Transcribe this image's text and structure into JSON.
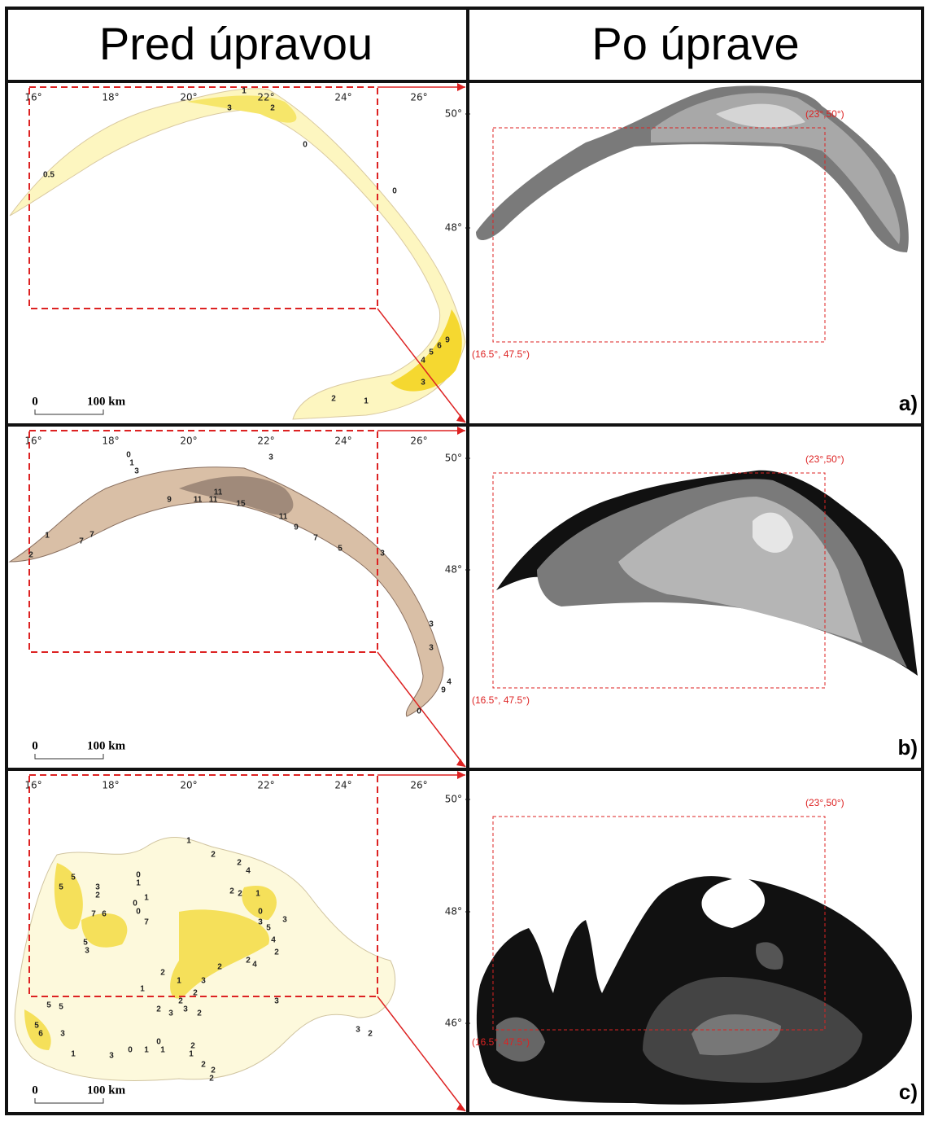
{
  "headers": [
    "Pred úpravou",
    "Po úprave"
  ],
  "lon_ticks": [
    "16°",
    "18°",
    "20°",
    "22°",
    "24°",
    "26°"
  ],
  "lat_ticks": [
    "50°",
    "48°",
    "46°"
  ],
  "scale_bar": {
    "zero": "0",
    "label": "100 km"
  },
  "corners": {
    "lower": "(16.5°, 47.5°)",
    "upper": "(23°,50°)"
  },
  "panels": [
    {
      "letter": "a)",
      "contour_labels": [
        "1",
        "3",
        "2",
        "0",
        "0.5",
        "0",
        "9",
        "6",
        "5",
        "4",
        "3",
        "2",
        "1"
      ]
    },
    {
      "letter": "b)",
      "contour_labels": [
        "0",
        "1",
        "3",
        "9",
        "11",
        "11",
        "11",
        "15",
        "3",
        "3",
        "7",
        "7",
        "1",
        "2",
        "11",
        "9",
        "7",
        "5",
        "3",
        "3",
        "4",
        "9",
        "0"
      ]
    },
    {
      "letter": "c)",
      "contour_labels": [
        "1",
        "2",
        "2",
        "4",
        "5",
        "5",
        "0",
        "1",
        "3",
        "2",
        "1",
        "0",
        "0",
        "7",
        "6",
        "7",
        "5",
        "3",
        "2",
        "2",
        "1",
        "0",
        "3",
        "3",
        "5",
        "4",
        "2",
        "2",
        "4",
        "2",
        "3",
        "3",
        "5",
        "6",
        "3",
        "1",
        "3",
        "2",
        "3",
        "2",
        "1",
        "2",
        "2",
        "0",
        "1",
        "2",
        "2",
        "2",
        "0",
        "1",
        "5",
        "5",
        "1",
        "2",
        "3",
        "2",
        "1",
        "3",
        "2"
      ]
    }
  ]
}
